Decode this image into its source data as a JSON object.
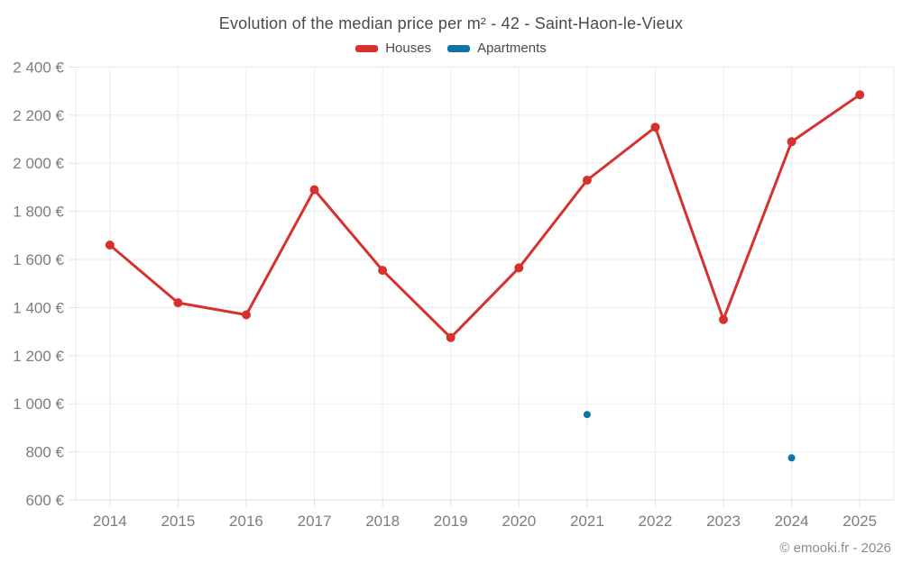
{
  "chart_data": {
    "type": "line",
    "title": "Evolution of the median price per m² - 42 - Saint-Haon-le-Vieux",
    "xlabel": "",
    "ylabel": "",
    "categories": [
      "2014",
      "2015",
      "2016",
      "2017",
      "2018",
      "2019",
      "2020",
      "2021",
      "2022",
      "2023",
      "2024",
      "2025"
    ],
    "ylim": [
      600,
      2400
    ],
    "y_ticks": [
      600,
      800,
      1000,
      1200,
      1400,
      1600,
      1800,
      2000,
      2200,
      2400
    ],
    "y_tick_labels": [
      "600 €",
      "800 €",
      "1 000 €",
      "1 200 €",
      "1 400 €",
      "1 600 €",
      "1 800 €",
      "2 000 €",
      "2 200 €",
      "2 400 €"
    ],
    "grid": true,
    "legend_position": "top",
    "series": [
      {
        "name": "Houses",
        "color": "#d7312e",
        "draw_line": true,
        "marker_radius": 5,
        "values": [
          1660,
          1420,
          1370,
          1890,
          1555,
          1275,
          1565,
          1930,
          2150,
          1350,
          2090,
          2285
        ]
      },
      {
        "name": "Apartments",
        "color": "#1173a6",
        "draw_line": false,
        "marker_radius": 4,
        "values": [
          null,
          null,
          null,
          null,
          null,
          null,
          null,
          955,
          null,
          null,
          775,
          null
        ]
      }
    ],
    "footer": "© emooki.fr - 2026"
  }
}
